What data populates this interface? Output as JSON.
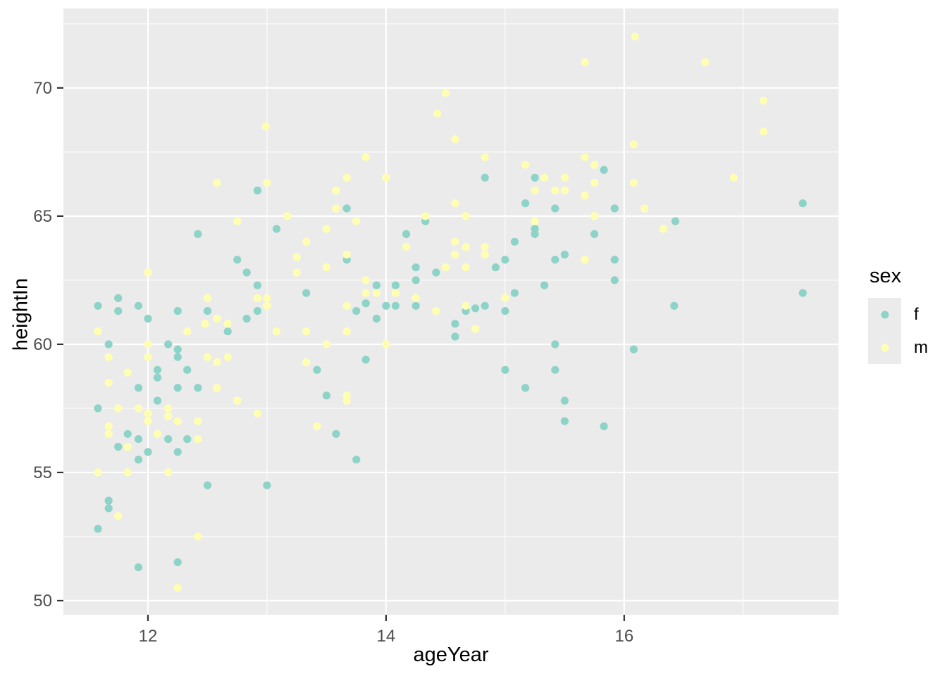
{
  "colors": {
    "panel_bg": "#ebebeb",
    "grid": "#ffffff",
    "tick_mark": "#333333",
    "tick_text": "#4d4d4d",
    "axis_title": "#000000",
    "f_point": "#8dd3c7",
    "m_point": "#ffffb3"
  },
  "chart_data": {
    "type": "scatter",
    "title": "",
    "xlabel": "ageYear",
    "ylabel": "heightIn",
    "xlim": [
      11.29,
      17.8
    ],
    "ylim": [
      49.45,
      73.1
    ],
    "x_major_ticks": [
      12,
      14,
      16
    ],
    "y_major_ticks": [
      50,
      55,
      60,
      65,
      70
    ],
    "x_minor_ticks": [
      13,
      15,
      17
    ],
    "y_minor_ticks": [
      52.5,
      57.5,
      62.5,
      67.5,
      72.5
    ],
    "grid": "major+minor on white over grey panel",
    "legend": {
      "title": "sex",
      "position": "right",
      "entries": [
        {
          "label": "f",
          "color": "#8dd3c7"
        },
        {
          "label": "m",
          "color": "#ffffb3"
        }
      ]
    },
    "series": [
      {
        "name": "f",
        "color": "#8dd3c7",
        "points": [
          [
            12.92,
            66.0
          ],
          [
            14.83,
            66.5
          ],
          [
            15.25,
            66.5
          ],
          [
            13.67,
            65.3
          ],
          [
            15.17,
            65.5
          ],
          [
            15.42,
            65.3
          ],
          [
            15.83,
            66.8
          ],
          [
            15.92,
            65.3
          ],
          [
            17.5,
            65.5
          ],
          [
            12.42,
            64.3
          ],
          [
            13.08,
            64.5
          ],
          [
            12.75,
            63.3
          ],
          [
            12.83,
            62.8
          ],
          [
            12.92,
            62.3
          ],
          [
            13.33,
            62.0
          ],
          [
            11.75,
            61.8
          ],
          [
            11.58,
            61.5
          ],
          [
            11.75,
            61.3
          ],
          [
            11.92,
            61.5
          ],
          [
            12.25,
            61.3
          ],
          [
            12.5,
            61.3
          ],
          [
            12.0,
            61.0
          ],
          [
            12.83,
            61.0
          ],
          [
            12.92,
            61.3
          ],
          [
            12.67,
            60.5
          ],
          [
            11.67,
            60.0
          ],
          [
            12.17,
            60.0
          ],
          [
            12.25,
            59.8
          ],
          [
            12.25,
            59.5
          ],
          [
            12.08,
            59.0
          ],
          [
            12.08,
            58.7
          ],
          [
            12.33,
            59.0
          ],
          [
            11.92,
            58.3
          ],
          [
            12.25,
            58.3
          ],
          [
            12.42,
            58.3
          ],
          [
            12.08,
            57.8
          ],
          [
            11.58,
            57.5
          ],
          [
            14.33,
            64.8
          ],
          [
            15.25,
            64.5
          ],
          [
            15.25,
            64.3
          ],
          [
            14.17,
            64.3
          ],
          [
            15.08,
            64.0
          ],
          [
            13.67,
            63.3
          ],
          [
            15.0,
            63.3
          ],
          [
            15.42,
            63.3
          ],
          [
            15.5,
            63.5
          ],
          [
            14.25,
            63.0
          ],
          [
            14.42,
            62.8
          ],
          [
            14.92,
            63.0
          ],
          [
            15.33,
            62.3
          ],
          [
            13.92,
            62.3
          ],
          [
            14.08,
            62.3
          ],
          [
            14.25,
            62.5
          ],
          [
            15.08,
            62.0
          ],
          [
            13.75,
            61.3
          ],
          [
            13.83,
            61.6
          ],
          [
            14.0,
            61.5
          ],
          [
            14.08,
            61.5
          ],
          [
            14.25,
            61.5
          ],
          [
            14.67,
            61.3
          ],
          [
            14.75,
            61.4
          ],
          [
            14.83,
            61.5
          ],
          [
            15.0,
            61.3
          ],
          [
            13.92,
            61.0
          ],
          [
            14.58,
            60.8
          ],
          [
            14.58,
            60.3
          ],
          [
            15.42,
            60.0
          ],
          [
            13.83,
            59.4
          ],
          [
            15.0,
            59.0
          ],
          [
            15.42,
            59.0
          ],
          [
            15.17,
            58.3
          ],
          [
            13.5,
            58.0
          ],
          [
            15.5,
            57.8
          ],
          [
            13.42,
            59.0
          ],
          [
            16.43,
            64.8
          ],
          [
            15.75,
            64.3
          ],
          [
            15.92,
            63.3
          ],
          [
            15.92,
            62.5
          ],
          [
            17.5,
            62.0
          ],
          [
            16.42,
            61.5
          ],
          [
            16.08,
            59.8
          ],
          [
            11.83,
            56.5
          ],
          [
            11.92,
            56.3
          ],
          [
            12.17,
            56.3
          ],
          [
            12.33,
            56.3
          ],
          [
            11.75,
            56.0
          ],
          [
            12.0,
            55.8
          ],
          [
            12.25,
            55.8
          ],
          [
            11.92,
            55.5
          ],
          [
            12.5,
            54.5
          ],
          [
            13.0,
            54.5
          ],
          [
            11.67,
            53.9
          ],
          [
            11.67,
            53.6
          ],
          [
            11.58,
            52.8
          ],
          [
            11.92,
            51.3
          ],
          [
            12.25,
            51.5
          ],
          [
            13.58,
            56.5
          ],
          [
            13.75,
            55.5
          ],
          [
            15.5,
            57.0
          ],
          [
            15.83,
            56.8
          ]
        ]
      },
      {
        "name": "m",
        "color": "#ffffb3",
        "points": [
          [
            12.99,
            68.5
          ],
          [
            12.58,
            66.3
          ],
          [
            13.0,
            66.3
          ],
          [
            14.5,
            69.8
          ],
          [
            14.43,
            69.0
          ],
          [
            14.58,
            68.0
          ],
          [
            13.83,
            67.3
          ],
          [
            14.83,
            67.3
          ],
          [
            15.17,
            67.0
          ],
          [
            13.67,
            66.5
          ],
          [
            14.0,
            66.5
          ],
          [
            15.33,
            66.5
          ],
          [
            15.5,
            66.5
          ],
          [
            13.58,
            66.0
          ],
          [
            15.25,
            66.0
          ],
          [
            15.42,
            66.0
          ],
          [
            15.5,
            66.0
          ],
          [
            13.58,
            65.3
          ],
          [
            14.58,
            65.5
          ],
          [
            16.09,
            72.0
          ],
          [
            15.67,
            71.0
          ],
          [
            16.68,
            71.0
          ],
          [
            17.17,
            69.5
          ],
          [
            17.17,
            68.3
          ],
          [
            16.08,
            67.8
          ],
          [
            15.67,
            67.3
          ],
          [
            15.75,
            67.0
          ],
          [
            15.75,
            66.3
          ],
          [
            16.08,
            66.3
          ],
          [
            16.92,
            66.5
          ],
          [
            15.67,
            65.8
          ],
          [
            16.17,
            65.3
          ],
          [
            12.75,
            64.8
          ],
          [
            13.17,
            65.0
          ],
          [
            13.33,
            64.0
          ],
          [
            13.25,
            63.4
          ],
          [
            13.25,
            62.8
          ],
          [
            12.0,
            62.8
          ],
          [
            12.92,
            61.8
          ],
          [
            13.0,
            61.8
          ],
          [
            12.5,
            61.8
          ],
          [
            13.0,
            61.5
          ],
          [
            12.58,
            61.0
          ],
          [
            12.67,
            60.8
          ],
          [
            11.58,
            60.5
          ],
          [
            12.33,
            60.5
          ],
          [
            13.08,
            60.5
          ],
          [
            13.33,
            60.5
          ],
          [
            12.48,
            60.8
          ],
          [
            12.0,
            60.0
          ],
          [
            11.67,
            59.5
          ],
          [
            12.0,
            59.5
          ],
          [
            12.5,
            59.5
          ],
          [
            12.58,
            59.3
          ],
          [
            12.67,
            59.5
          ],
          [
            11.83,
            58.9
          ],
          [
            11.67,
            58.5
          ],
          [
            12.58,
            58.3
          ],
          [
            12.75,
            57.8
          ],
          [
            11.75,
            57.5
          ],
          [
            11.92,
            57.5
          ],
          [
            12.0,
            57.3
          ],
          [
            12.17,
            57.5
          ],
          [
            12.17,
            57.2
          ],
          [
            12.92,
            57.3
          ],
          [
            14.33,
            65.0
          ],
          [
            14.67,
            65.0
          ],
          [
            13.75,
            64.8
          ],
          [
            15.25,
            64.8
          ],
          [
            13.5,
            64.5
          ],
          [
            14.58,
            64.0
          ],
          [
            14.17,
            63.8
          ],
          [
            14.67,
            63.8
          ],
          [
            14.83,
            63.8
          ],
          [
            13.67,
            63.5
          ],
          [
            14.58,
            63.5
          ],
          [
            14.83,
            63.5
          ],
          [
            13.5,
            63.0
          ],
          [
            14.5,
            63.0
          ],
          [
            14.67,
            63.0
          ],
          [
            13.83,
            62.5
          ],
          [
            13.83,
            62.0
          ],
          [
            13.92,
            62.0
          ],
          [
            14.08,
            62.0
          ],
          [
            14.25,
            61.8
          ],
          [
            15.0,
            61.8
          ],
          [
            13.67,
            61.5
          ],
          [
            14.42,
            61.3
          ],
          [
            14.67,
            61.5
          ],
          [
            14.75,
            60.6
          ],
          [
            13.67,
            60.5
          ],
          [
            13.5,
            60.0
          ],
          [
            14.0,
            60.0
          ],
          [
            13.67,
            58.0
          ],
          [
            13.67,
            57.8
          ],
          [
            13.33,
            59.3
          ],
          [
            15.75,
            65.0
          ],
          [
            16.33,
            64.5
          ],
          [
            15.67,
            63.3
          ],
          [
            12.0,
            57.0
          ],
          [
            12.25,
            57.0
          ],
          [
            12.42,
            57.0
          ],
          [
            11.67,
            56.8
          ],
          [
            11.67,
            56.5
          ],
          [
            12.08,
            56.5
          ],
          [
            12.42,
            56.3
          ],
          [
            11.83,
            56.0
          ],
          [
            11.58,
            55.0
          ],
          [
            11.83,
            55.0
          ],
          [
            12.17,
            55.0
          ],
          [
            13.42,
            56.8
          ],
          [
            11.75,
            53.3
          ],
          [
            12.42,
            52.5
          ],
          [
            12.25,
            50.5
          ]
        ]
      }
    ]
  },
  "layout_labels": {
    "x_tick_labels": [
      "12",
      "14",
      "16"
    ],
    "y_tick_labels": [
      "50",
      "55",
      "60",
      "65",
      "70"
    ]
  }
}
